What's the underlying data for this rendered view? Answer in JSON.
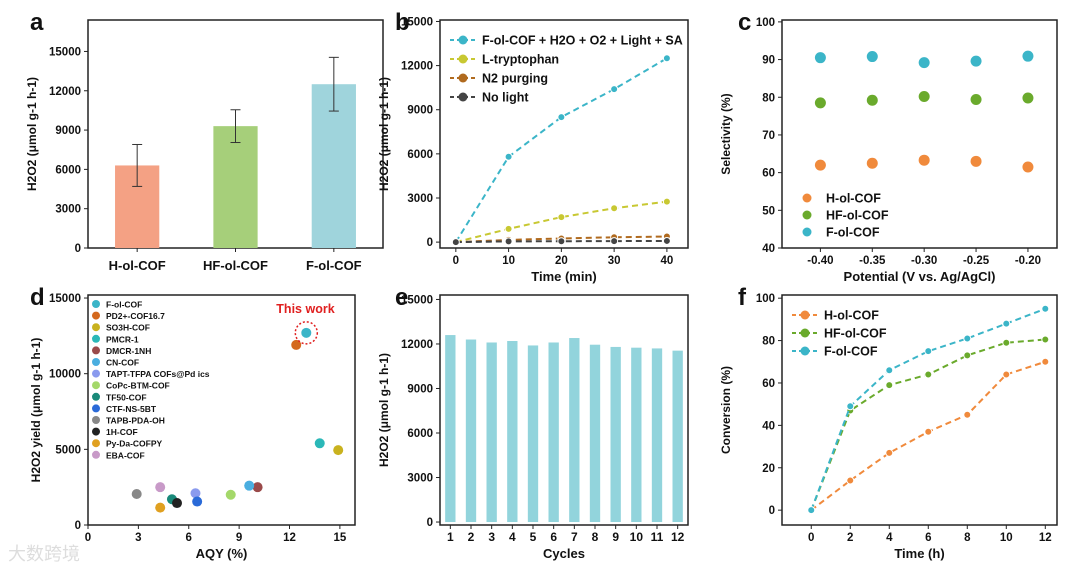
{
  "chart_data": [
    {
      "panel": "a",
      "type": "bar",
      "categories": [
        "H-ol-COF",
        "HF-ol-COF",
        "F-ol-COF"
      ],
      "values": [
        6300,
        9300,
        12500
      ],
      "errors": [
        1600,
        1250,
        2050
      ],
      "colors": [
        "#f4a184",
        "#a6cf7a",
        "#9fd4dc"
      ],
      "xlabel": "",
      "ylabel": "H2O2 (μmol g-1 h-1)",
      "ylim": [
        0,
        17400
      ],
      "yticks": [
        0,
        3000,
        6000,
        9000,
        12000,
        15000
      ]
    },
    {
      "panel": "b",
      "type": "line",
      "x": [
        0,
        10,
        20,
        30,
        40
      ],
      "xlabel": "Time (min)",
      "ylabel": "H2O2 (μmol g-1 h-1)",
      "xlim": [
        -3,
        44
      ],
      "ylim": [
        -400,
        15100
      ],
      "xticks": [
        0,
        10,
        20,
        30,
        40
      ],
      "yticks": [
        0,
        3000,
        6000,
        9000,
        12000,
        15000
      ],
      "legend": "top-left",
      "series": [
        {
          "name": "F-ol-COF + H2O + O2 + Light + SA",
          "color": "#3bb5c8",
          "values": [
            0,
            5800,
            8500,
            10400,
            12500
          ]
        },
        {
          "name": "L-tryptophan",
          "color": "#c8c832",
          "values": [
            0,
            900,
            1700,
            2300,
            2750
          ]
        },
        {
          "name": "N2 purging",
          "color": "#b06a1e",
          "values": [
            0,
            150,
            250,
            330,
            380
          ]
        },
        {
          "name": "No light",
          "color": "#444444",
          "values": [
            0,
            50,
            60,
            70,
            80
          ]
        }
      ]
    },
    {
      "panel": "c",
      "type": "scatter",
      "x": [
        -0.4,
        -0.35,
        -0.3,
        -0.25,
        -0.2
      ],
      "xlabel": "Potential (V vs. Ag/AgCl)",
      "ylabel": "Selectivity (%)",
      "xlim": [
        -0.437,
        -0.172
      ],
      "ylim": [
        40,
        100.5
      ],
      "xticks": [
        "-0.40",
        "-0.35",
        "-0.30",
        "-0.25",
        "-0.20"
      ],
      "yticks": [
        40,
        50,
        60,
        70,
        80,
        90,
        100
      ],
      "legend": "bottom-left",
      "series": [
        {
          "name": "H-ol-COF",
          "color": "#f08a3c",
          "values": [
            62,
            62.5,
            63.3,
            63,
            61.5
          ]
        },
        {
          "name": "HF-ol-COF",
          "color": "#6aaa2c",
          "values": [
            78.5,
            79.2,
            80.2,
            79.4,
            79.8
          ]
        },
        {
          "name": "F-ol-COF",
          "color": "#3bb5c8",
          "values": [
            90.5,
            90.8,
            89.2,
            89.6,
            90.9
          ]
        }
      ]
    },
    {
      "panel": "d",
      "type": "scatter",
      "xlabel": "AQY (%)",
      "ylabel": "H2O2 yield (μmol g-1 h-1)",
      "xlim": [
        0,
        15.9
      ],
      "ylim": [
        0,
        15200
      ],
      "xticks": [
        0,
        3,
        6,
        9,
        12,
        15
      ],
      "yticks": [
        0,
        5000,
        10000,
        15000
      ],
      "legend": "top-left",
      "annotation": "This work",
      "points": [
        {
          "name": "F-ol-COF",
          "x": 13.0,
          "y": 12700,
          "color": "#3bb5c8"
        },
        {
          "name": "PD2+-COF16.7",
          "x": 12.4,
          "y": 11900,
          "color": "#d4691e"
        },
        {
          "name": "SO3H-COF",
          "x": 14.9,
          "y": 4950,
          "color": "#c9b21e"
        },
        {
          "name": "PMCR-1",
          "x": 13.8,
          "y": 5400,
          "color": "#2bb8b8"
        },
        {
          "name": "DMCR-1NH",
          "x": 10.1,
          "y": 2500,
          "color": "#9a4a4a"
        },
        {
          "name": "CN-COF",
          "x": 9.6,
          "y": 2600,
          "color": "#4aaee0"
        },
        {
          "name": "TAPT-TFPA COFs@Pd ics",
          "x": 6.4,
          "y": 2100,
          "color": "#8a9aee"
        },
        {
          "name": "CoPc-BTM-COF",
          "x": 8.5,
          "y": 2000,
          "color": "#a4d86a"
        },
        {
          "name": "TF50-COF",
          "x": 5.0,
          "y": 1700,
          "color": "#1a8a7a"
        },
        {
          "name": "CTF-NS-5BT",
          "x": 6.5,
          "y": 1550,
          "color": "#2a6ad8"
        },
        {
          "name": "TAPB-PDA-OH",
          "x": 2.9,
          "y": 2050,
          "color": "#888888"
        },
        {
          "name": "1H-COF",
          "x": 5.3,
          "y": 1450,
          "color": "#222222"
        },
        {
          "name": "Py-Da-COFPY",
          "x": 4.3,
          "y": 1150,
          "color": "#e0a020"
        },
        {
          "name": "EBA-COF",
          "x": 4.3,
          "y": 2500,
          "color": "#c89ac8"
        }
      ]
    },
    {
      "panel": "e",
      "type": "bar",
      "categories": [
        "1",
        "2",
        "3",
        "4",
        "5",
        "6",
        "7",
        "8",
        "9",
        "10",
        "11",
        "12"
      ],
      "values": [
        12600,
        12300,
        12100,
        12200,
        11900,
        12100,
        12400,
        11950,
        11800,
        11750,
        11700,
        11550
      ],
      "color": "#92d4dc",
      "xlabel": "Cycles",
      "ylabel": "H2O2 (μmol g-1 h-1)",
      "ylim": [
        -200,
        15300
      ],
      "yticks": [
        0,
        3000,
        6000,
        9000,
        12000,
        15000
      ]
    },
    {
      "panel": "f",
      "type": "line",
      "x": [
        0,
        2,
        4,
        6,
        8,
        10,
        12
      ],
      "xlabel": "Time (h)",
      "ylabel": "Conversion (%)",
      "xlim": [
        -1.5,
        12.6
      ],
      "ylim": [
        -7,
        101.5
      ],
      "xticks": [
        0,
        2,
        4,
        6,
        8,
        10,
        12
      ],
      "yticks": [
        0,
        20,
        40,
        60,
        80,
        100
      ],
      "legend": "top-left",
      "series": [
        {
          "name": "H-ol-COF",
          "color": "#f08a3c",
          "values": [
            0,
            14,
            27,
            37,
            45,
            64,
            70
          ]
        },
        {
          "name": "HF-ol-COF",
          "color": "#6aaa2c",
          "values": [
            0,
            47,
            59,
            64,
            73,
            79,
            80.5
          ]
        },
        {
          "name": "F-ol-COF",
          "color": "#3bb5c8",
          "values": [
            0,
            49,
            66,
            75,
            81,
            88,
            95
          ]
        }
      ]
    }
  ],
  "panel_letters": [
    "a",
    "b",
    "c",
    "d",
    "e",
    "f"
  ],
  "watermark": "大数跨境"
}
